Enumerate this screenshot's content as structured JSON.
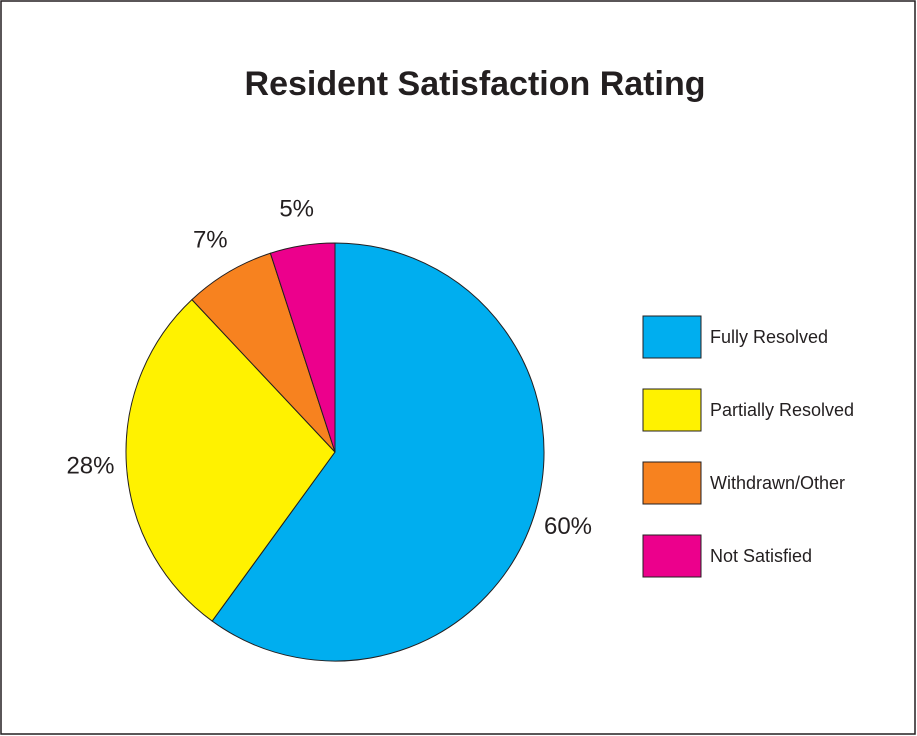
{
  "chart_data": {
    "type": "pie",
    "title": "Resident Satisfaction Rating",
    "categories": [
      "Fully Resolved",
      "Partially Resolved",
      "Withdrawn/Other",
      "Not Satisfied"
    ],
    "values": [
      60,
      28,
      7,
      5
    ],
    "value_labels": [
      "60%",
      "28%",
      "7%",
      "5%"
    ],
    "colors": [
      "#00aeef",
      "#fff200",
      "#f7821f",
      "#ec008c"
    ]
  }
}
